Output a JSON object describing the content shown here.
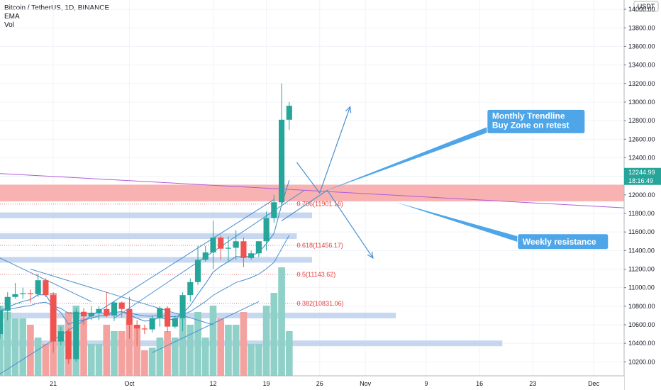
{
  "legend": {
    "title": "Bitcoin / TetherUS, 1D, BINANCE",
    "ema": "EMA",
    "vol": "Vol"
  },
  "currency": "USDT",
  "last_price": "12244.99",
  "countdown": "18:16:49",
  "colors": {
    "up": "#26a69a",
    "down": "#ef5350",
    "vol_up": "#8fd0c8",
    "vol_down": "#f4a29f",
    "zone": "#f8a5a5",
    "support": "#bcd0ec",
    "trend": "#4a8fd0",
    "purple": "#b05cd8",
    "callout": "#4ea6e9"
  },
  "chart_data": {
    "type": "candlestick",
    "y_axis": {
      "min": 10050,
      "max": 14100,
      "ticks": [
        10200,
        10400,
        10600,
        10800,
        11000,
        11200,
        11400,
        11600,
        11800,
        12000,
        12200,
        12400,
        12600,
        12800,
        13000,
        13200,
        13400,
        13600,
        13800,
        14000
      ],
      "tick_labels": [
        "10200.00",
        "10400.00",
        "10600.00",
        "10800.00",
        "11000.00",
        "11200.00",
        "11400.00",
        "11600.00",
        "11800.00",
        "12000.00",
        "12200.00",
        "12400.00",
        "12600.00",
        "12800.00",
        "13000.00",
        "13200.00",
        "13400.00",
        "13600.00",
        "13800.00",
        "14000.00"
      ]
    },
    "x_axis": {
      "start": "2020-09-14",
      "end": "2020-12-05",
      "ticks": [
        {
          "date": "2020-09-21",
          "label": "21"
        },
        {
          "date": "2020-10-01",
          "label": "Oct"
        },
        {
          "date": "2020-10-12",
          "label": "12"
        },
        {
          "date": "2020-10-19",
          "label": "19"
        },
        {
          "date": "2020-10-26",
          "label": "26"
        },
        {
          "date": "2020-11-01",
          "label": "Nov"
        },
        {
          "date": "2020-11-09",
          "label": "9"
        },
        {
          "date": "2020-11-16",
          "label": "16"
        },
        {
          "date": "2020-11-23",
          "label": "23"
        },
        {
          "date": "2020-12-01",
          "label": "Dec"
        }
      ]
    },
    "candles": [
      {
        "date": "2020-09-14",
        "o": 10500,
        "h": 10800,
        "l": 10450,
        "c": 10750,
        "v": 0.55
      },
      {
        "date": "2020-09-15",
        "o": 10750,
        "h": 10950,
        "l": 10650,
        "c": 10900,
        "v": 0.5
      },
      {
        "date": "2020-09-16",
        "o": 10900,
        "h": 11050,
        "l": 10880,
        "c": 10930,
        "v": 0.45
      },
      {
        "date": "2020-09-17",
        "o": 10930,
        "h": 11000,
        "l": 10880,
        "c": 10940,
        "v": 0.45
      },
      {
        "date": "2020-09-18",
        "o": 10940,
        "h": 10980,
        "l": 10840,
        "c": 10930,
        "v": 0.4
      },
      {
        "date": "2020-09-19",
        "o": 10930,
        "h": 11150,
        "l": 10900,
        "c": 11080,
        "v": 0.3
      },
      {
        "date": "2020-09-20",
        "o": 11080,
        "h": 11100,
        "l": 10900,
        "c": 10920,
        "v": 0.25
      },
      {
        "date": "2020-09-21",
        "o": 10920,
        "h": 10950,
        "l": 10300,
        "c": 10420,
        "v": 0.65
      },
      {
        "date": "2020-09-22",
        "o": 10420,
        "h": 10580,
        "l": 10380,
        "c": 10530,
        "v": 0.4
      },
      {
        "date": "2020-09-23",
        "o": 10530,
        "h": 10560,
        "l": 10180,
        "c": 10230,
        "v": 0.5
      },
      {
        "date": "2020-09-24",
        "o": 10230,
        "h": 10780,
        "l": 10200,
        "c": 10740,
        "v": 0.55
      },
      {
        "date": "2020-09-25",
        "o": 10740,
        "h": 10780,
        "l": 10600,
        "c": 10690,
        "v": 0.45
      },
      {
        "date": "2020-09-26",
        "o": 10690,
        "h": 10800,
        "l": 10650,
        "c": 10730,
        "v": 0.25
      },
      {
        "date": "2020-09-27",
        "o": 10730,
        "h": 10800,
        "l": 10650,
        "c": 10770,
        "v": 0.25
      },
      {
        "date": "2020-09-28",
        "o": 10770,
        "h": 10950,
        "l": 10680,
        "c": 10700,
        "v": 0.4
      },
      {
        "date": "2020-09-29",
        "o": 10700,
        "h": 10860,
        "l": 10640,
        "c": 10840,
        "v": 0.35
      },
      {
        "date": "2020-09-30",
        "o": 10840,
        "h": 10850,
        "l": 10680,
        "c": 10770,
        "v": 0.35
      },
      {
        "date": "2020-10-01",
        "o": 10770,
        "h": 10900,
        "l": 10450,
        "c": 10600,
        "v": 0.45
      },
      {
        "date": "2020-10-02",
        "o": 10600,
        "h": 10650,
        "l": 10370,
        "c": 10560,
        "v": 0.4
      },
      {
        "date": "2020-10-03",
        "o": 10560,
        "h": 10600,
        "l": 10500,
        "c": 10550,
        "v": 0.2
      },
      {
        "date": "2020-10-04",
        "o": 10550,
        "h": 10700,
        "l": 10520,
        "c": 10670,
        "v": 0.22
      },
      {
        "date": "2020-10-05",
        "o": 10670,
        "h": 10800,
        "l": 10580,
        "c": 10780,
        "v": 0.3
      },
      {
        "date": "2020-10-06",
        "o": 10780,
        "h": 10800,
        "l": 10520,
        "c": 10580,
        "v": 0.35
      },
      {
        "date": "2020-10-07",
        "o": 10580,
        "h": 10700,
        "l": 10560,
        "c": 10670,
        "v": 0.3
      },
      {
        "date": "2020-10-08",
        "o": 10670,
        "h": 10950,
        "l": 10530,
        "c": 10920,
        "v": 0.45
      },
      {
        "date": "2020-10-09",
        "o": 10920,
        "h": 11100,
        "l": 10850,
        "c": 11060,
        "v": 0.4
      },
      {
        "date": "2020-10-10",
        "o": 11060,
        "h": 11450,
        "l": 11030,
        "c": 11300,
        "v": 0.5
      },
      {
        "date": "2020-10-11",
        "o": 11300,
        "h": 11450,
        "l": 11280,
        "c": 11380,
        "v": 0.3
      },
      {
        "date": "2020-10-12",
        "o": 11380,
        "h": 11720,
        "l": 11200,
        "c": 11540,
        "v": 0.55
      },
      {
        "date": "2020-10-13",
        "o": 11540,
        "h": 11560,
        "l": 11300,
        "c": 11420,
        "v": 0.45
      },
      {
        "date": "2020-10-14",
        "o": 11420,
        "h": 11550,
        "l": 11280,
        "c": 11430,
        "v": 0.4
      },
      {
        "date": "2020-10-15",
        "o": 11430,
        "h": 11620,
        "l": 11300,
        "c": 11500,
        "v": 0.4
      },
      {
        "date": "2020-10-16",
        "o": 11500,
        "h": 11540,
        "l": 11220,
        "c": 11320,
        "v": 0.5
      },
      {
        "date": "2020-10-17",
        "o": 11320,
        "h": 11400,
        "l": 11300,
        "c": 11370,
        "v": 0.25
      },
      {
        "date": "2020-10-18",
        "o": 11370,
        "h": 11500,
        "l": 11330,
        "c": 11500,
        "v": 0.25
      },
      {
        "date": "2020-10-19",
        "o": 11500,
        "h": 11820,
        "l": 11400,
        "c": 11750,
        "v": 0.55
      },
      {
        "date": "2020-10-20",
        "o": 11750,
        "h": 12000,
        "l": 11700,
        "c": 11920,
        "v": 0.65
      },
      {
        "date": "2020-10-21",
        "o": 11920,
        "h": 13200,
        "l": 11900,
        "c": 12810,
        "v": 0.85
      },
      {
        "date": "2020-10-22",
        "o": 12810,
        "h": 13000,
        "l": 12700,
        "c": 12960,
        "v": 0.35
      }
    ],
    "price_lines": [
      {
        "label": "0.786(11901.16)",
        "price": 11901.16
      },
      {
        "label": "0.618(11456.17)",
        "price": 11456.17
      },
      {
        "label": "0.5(11143.62)",
        "price": 11143.62
      },
      {
        "label": "0.382(10831.06)",
        "price": 10831.06
      }
    ],
    "resistance_zone": [
      11930,
      12110
    ],
    "support_zones": [
      {
        "price": 11780,
        "until": "2020-10-25"
      },
      {
        "price": 11555,
        "until": "2020-10-23"
      },
      {
        "price": 11300,
        "until": "2020-10-25"
      },
      {
        "price": 10700,
        "until": "2020-11-05"
      },
      {
        "price": 10400,
        "until": "2020-11-19"
      }
    ],
    "annotations": [
      {
        "text": [
          "Monthly Trendline",
          "Buy Zone on retest"
        ]
      },
      {
        "text": [
          "Weekly resistance"
        ]
      }
    ]
  }
}
